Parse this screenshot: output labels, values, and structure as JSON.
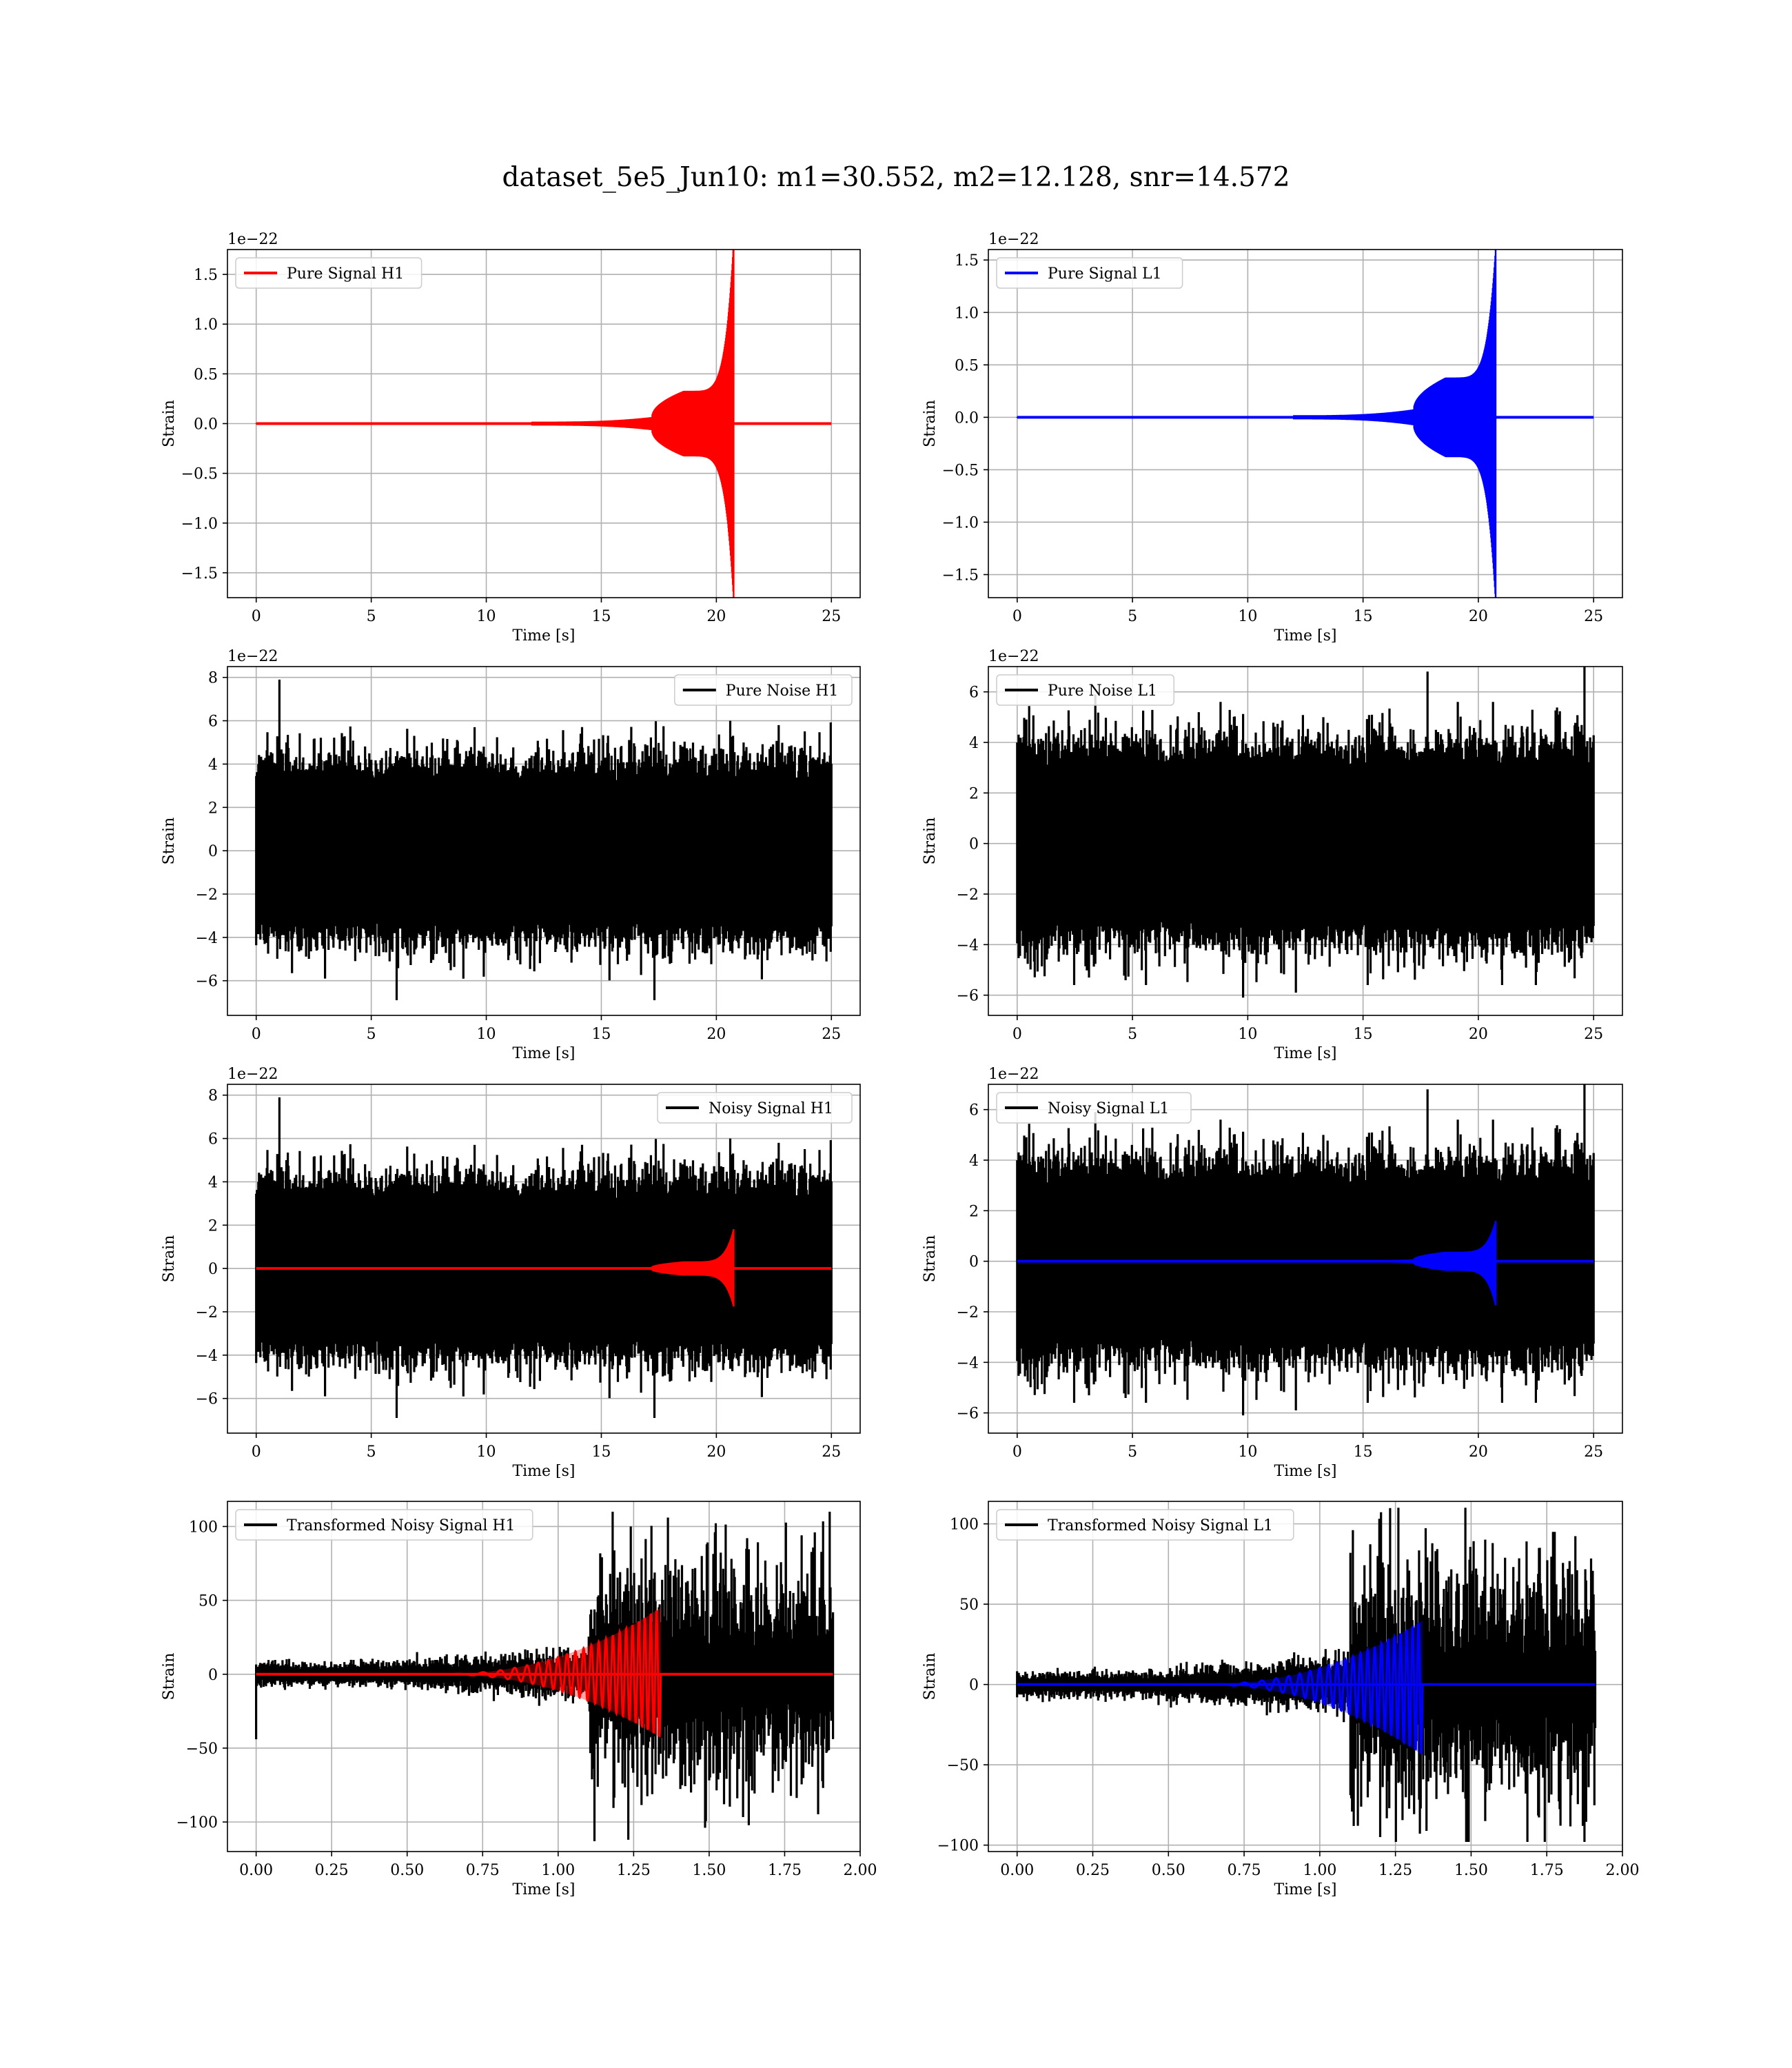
{
  "figure": {
    "suptitle": "dataset_5e5_Jun10: m1=30.552, m2=12.128, snr=14.572"
  },
  "colors": {
    "h1_signal": "#ff0000",
    "l1_signal": "#0000ff",
    "noise": "#000000",
    "grid": "#b0b0b0"
  },
  "chart_data": [
    {
      "id": "pure-signal-h1",
      "type": "line",
      "kind": "signal",
      "title": "",
      "xlabel": "Time [s]",
      "ylabel": "Strain",
      "offset_text": "1e−22",
      "xlim": [
        -1.25,
        26.25
      ],
      "ylim": [
        -1.75,
        1.75
      ],
      "xticks": [
        0,
        5,
        10,
        15,
        20,
        25
      ],
      "xtick_labels": [
        "0",
        "5",
        "10",
        "15",
        "20",
        "25"
      ],
      "yticks": [
        -1.5,
        -1.0,
        -0.5,
        0.0,
        0.5,
        1.0,
        1.5
      ],
      "ytick_labels": [
        "−1.5",
        "−1.0",
        "−0.5",
        "0.0",
        "0.5",
        "1.0",
        "1.5"
      ],
      "grid": true,
      "legend_position": "upper-left",
      "series": [
        {
          "name": "Pure Signal H1",
          "color": "#ff0000",
          "x_range": [
            0,
            25
          ],
          "signal": {
            "merger_time": 20.7,
            "plateau_start": 17.2,
            "plateau_end": 18.6,
            "plateau_amp": 0.33,
            "peak_amp": 1.62,
            "peak_min": -1.57,
            "early_amp": 0.02
          }
        }
      ]
    },
    {
      "id": "pure-signal-l1",
      "type": "line",
      "kind": "signal",
      "title": "",
      "xlabel": "Time [s]",
      "ylabel": "Strain",
      "offset_text": "1e−22",
      "xlim": [
        -1.25,
        26.25
      ],
      "ylim": [
        -1.72,
        1.6
      ],
      "xticks": [
        0,
        5,
        10,
        15,
        20,
        25
      ],
      "xtick_labels": [
        "0",
        "5",
        "10",
        "15",
        "20",
        "25"
      ],
      "yticks": [
        -1.5,
        -1.0,
        -0.5,
        0.0,
        0.5,
        1.0,
        1.5
      ],
      "ytick_labels": [
        "−1.5",
        "−1.0",
        "−0.5",
        "0.0",
        "0.5",
        "1.0",
        "1.5"
      ],
      "grid": true,
      "legend_position": "upper-left",
      "series": [
        {
          "name": "Pure Signal L1",
          "color": "#0000ff",
          "x_range": [
            0,
            25
          ],
          "signal": {
            "merger_time": 20.7,
            "plateau_start": 17.2,
            "plateau_end": 18.6,
            "plateau_amp": 0.38,
            "peak_amp": 1.44,
            "peak_min": -1.57,
            "early_amp": 0.02
          }
        }
      ]
    },
    {
      "id": "pure-noise-h1",
      "type": "line",
      "kind": "noise",
      "title": "",
      "xlabel": "Time [s]",
      "ylabel": "Strain",
      "offset_text": "1e−22",
      "xlim": [
        -1.25,
        26.25
      ],
      "ylim": [
        -7.6,
        8.5
      ],
      "xticks": [
        0,
        5,
        10,
        15,
        20,
        25
      ],
      "xtick_labels": [
        "0",
        "5",
        "10",
        "15",
        "20",
        "25"
      ],
      "yticks": [
        -6,
        -4,
        -2,
        0,
        2,
        4,
        6,
        8
      ],
      "ytick_labels": [
        "−6",
        "−4",
        "−2",
        "0",
        "2",
        "4",
        "6",
        "8"
      ],
      "grid": true,
      "legend_position": "upper-right",
      "series": [
        {
          "name": "Pure Noise H1",
          "color": "#000000",
          "x_range": [
            0,
            25
          ],
          "noise": {
            "seed": 11,
            "core": 3.2,
            "peak_hi": 6.0,
            "peak_lo": -6.1,
            "spikes": [
              [
                1.0,
                7.9
              ],
              [
                6.1,
                -6.9
              ],
              [
                17.3,
                -6.9
              ],
              [
                3.0,
                -5.9
              ],
              [
                22.7,
                5.8
              ]
            ]
          }
        }
      ]
    },
    {
      "id": "pure-noise-l1",
      "type": "line",
      "kind": "noise",
      "title": "",
      "xlabel": "Time [s]",
      "ylabel": "Strain",
      "offset_text": "1e−22",
      "xlim": [
        -1.25,
        26.25
      ],
      "ylim": [
        -6.8,
        7.0
      ],
      "xticks": [
        0,
        5,
        10,
        15,
        20,
        25
      ],
      "xtick_labels": [
        "0",
        "5",
        "10",
        "15",
        "20",
        "25"
      ],
      "yticks": [
        -6,
        -4,
        -2,
        0,
        2,
        4,
        6
      ],
      "ytick_labels": [
        "−6",
        "−4",
        "−2",
        "0",
        "2",
        "4",
        "6"
      ],
      "grid": true,
      "legend_position": "upper-left",
      "series": [
        {
          "name": "Pure Noise L1",
          "color": "#000000",
          "x_range": [
            0,
            25
          ],
          "noise": {
            "seed": 23,
            "core": 3.0,
            "peak_hi": 5.6,
            "peak_lo": -5.6,
            "spikes": [
              [
                24.6,
                7.1
              ],
              [
                17.8,
                6.8
              ],
              [
                9.8,
                -6.1
              ],
              [
                12.1,
                -5.9
              ],
              [
                3.4,
                5.9
              ]
            ]
          }
        }
      ]
    },
    {
      "id": "noisy-signal-h1",
      "type": "line",
      "kind": "noise+signal",
      "title": "",
      "xlabel": "Time [s]",
      "ylabel": "Strain",
      "offset_text": "1e−22",
      "xlim": [
        -1.25,
        26.25
      ],
      "ylim": [
        -7.6,
        8.5
      ],
      "xticks": [
        0,
        5,
        10,
        15,
        20,
        25
      ],
      "xtick_labels": [
        "0",
        "5",
        "10",
        "15",
        "20",
        "25"
      ],
      "yticks": [
        -6,
        -4,
        -2,
        0,
        2,
        4,
        6,
        8
      ],
      "ytick_labels": [
        "−6",
        "−4",
        "−2",
        "0",
        "2",
        "4",
        "6",
        "8"
      ],
      "grid": true,
      "legend_position": "upper-right",
      "series": [
        {
          "name": "Noisy Signal H1",
          "color": "#000000",
          "x_range": [
            0,
            25
          ],
          "noise": {
            "seed": 11,
            "core": 3.2,
            "peak_hi": 6.0,
            "peak_lo": -6.1,
            "spikes": [
              [
                1.0,
                7.9
              ],
              [
                6.1,
                -6.9
              ],
              [
                17.3,
                -6.9
              ],
              [
                3.0,
                -5.9
              ],
              [
                22.7,
                5.8
              ]
            ]
          }
        },
        {
          "color": "#ff0000",
          "x_range": [
            0,
            25
          ],
          "signal": {
            "merger_time": 20.7,
            "plateau_start": 17.2,
            "plateau_end": 18.6,
            "plateau_amp": 0.33,
            "peak_amp": 1.62,
            "peak_min": -1.57,
            "early_amp": 0.02
          }
        }
      ]
    },
    {
      "id": "noisy-signal-l1",
      "type": "line",
      "kind": "noise+signal",
      "title": "",
      "xlabel": "Time [s]",
      "ylabel": "Strain",
      "offset_text": "1e−22",
      "xlim": [
        -1.25,
        26.25
      ],
      "ylim": [
        -6.8,
        7.0
      ],
      "xticks": [
        0,
        5,
        10,
        15,
        20,
        25
      ],
      "xtick_labels": [
        "0",
        "5",
        "10",
        "15",
        "20",
        "25"
      ],
      "yticks": [
        -6,
        -4,
        -2,
        0,
        2,
        4,
        6
      ],
      "ytick_labels": [
        "−6",
        "−4",
        "−2",
        "0",
        "2",
        "4",
        "6"
      ],
      "grid": true,
      "legend_position": "upper-left",
      "series": [
        {
          "name": "Noisy Signal L1",
          "color": "#000000",
          "x_range": [
            0,
            25
          ],
          "noise": {
            "seed": 23,
            "core": 3.0,
            "peak_hi": 5.6,
            "peak_lo": -5.6,
            "spikes": [
              [
                24.6,
                7.1
              ],
              [
                17.8,
                6.8
              ],
              [
                9.8,
                -6.1
              ],
              [
                12.1,
                -5.9
              ],
              [
                3.4,
                5.9
              ]
            ]
          }
        },
        {
          "color": "#0000ff",
          "x_range": [
            0,
            25
          ],
          "signal": {
            "merger_time": 20.7,
            "plateau_start": 17.2,
            "plateau_end": 18.6,
            "plateau_amp": 0.38,
            "peak_amp": 1.44,
            "peak_min": -1.57,
            "early_amp": 0.02
          }
        }
      ]
    },
    {
      "id": "transformed-h1",
      "type": "line",
      "kind": "transformed",
      "title": "",
      "xlabel": "Time [s]",
      "ylabel": "Strain",
      "offset_text": "",
      "xlim": [
        -0.095,
        2.0
      ],
      "ylim": [
        -120,
        117
      ],
      "xticks": [
        0.0,
        0.25,
        0.5,
        0.75,
        1.0,
        1.25,
        1.5,
        1.75,
        2.0
      ],
      "xtick_labels": [
        "0.00",
        "0.25",
        "0.50",
        "0.75",
        "1.00",
        "1.25",
        "1.50",
        "1.75",
        "2.00"
      ],
      "yticks": [
        -100,
        -50,
        0,
        50,
        100
      ],
      "ytick_labels": [
        "−100",
        "−50",
        "0",
        "50",
        "100"
      ],
      "grid": true,
      "legend_position": "upper-left",
      "series": [
        {
          "name": "Transformed Noisy Signal H1",
          "color": "#000000",
          "x_range": [
            0,
            1.91
          ],
          "noise": {
            "seed": 37,
            "start_dip": -44,
            "env_early": 6,
            "env_mid": 12,
            "env_late": 34,
            "burst_start": 1.1,
            "peak_hi": 110,
            "peak_lo": -112,
            "spikes": [
              [
                1.18,
                110
              ],
              [
                1.12,
                -113
              ],
              [
                1.24,
                100
              ],
              [
                1.55,
                -88
              ],
              [
                1.85,
                96
              ]
            ]
          }
        },
        {
          "color": "#ff0000",
          "x_range": [
            0,
            1.91
          ],
          "signal": {
            "merger_time": 1.34,
            "start": 0.6,
            "peak_amp": 45,
            "peak_min": -43,
            "cycles_before": 11
          }
        }
      ]
    },
    {
      "id": "transformed-l1",
      "type": "line",
      "kind": "transformed",
      "title": "",
      "xlabel": "Time [s]",
      "ylabel": "Strain",
      "offset_text": "",
      "xlim": [
        -0.095,
        2.0
      ],
      "ylim": [
        -104,
        114
      ],
      "xticks": [
        0.0,
        0.25,
        0.5,
        0.75,
        1.0,
        1.25,
        1.5,
        1.75,
        2.0
      ],
      "xtick_labels": [
        "0.00",
        "0.25",
        "0.50",
        "0.75",
        "1.00",
        "1.25",
        "1.50",
        "1.75",
        "2.00"
      ],
      "yticks": [
        -100,
        -50,
        0,
        50,
        100
      ],
      "ytick_labels": [
        "−100",
        "−50",
        "0",
        "50",
        "100"
      ],
      "grid": true,
      "legend_position": "upper-left",
      "series": [
        {
          "name": "Transformed Noisy Signal L1",
          "color": "#000000",
          "x_range": [
            0,
            1.91
          ],
          "noise": {
            "seed": 41,
            "start_dip": -8,
            "env_early": 6,
            "env_mid": 14,
            "env_late": 34,
            "burst_start": 1.1,
            "peak_hi": 110,
            "peak_lo": -98,
            "spikes": [
              [
                1.26,
                110
              ],
              [
                1.2,
                -95
              ],
              [
                1.77,
                95
              ],
              [
                1.87,
                -88
              ],
              [
                1.1,
                82
              ]
            ]
          }
        },
        {
          "color": "#0000ff",
          "x_range": [
            0,
            1.91
          ],
          "signal": {
            "merger_time": 1.34,
            "start": 0.6,
            "peak_amp": 40,
            "peak_min": -44,
            "cycles_before": 11
          }
        }
      ]
    }
  ]
}
